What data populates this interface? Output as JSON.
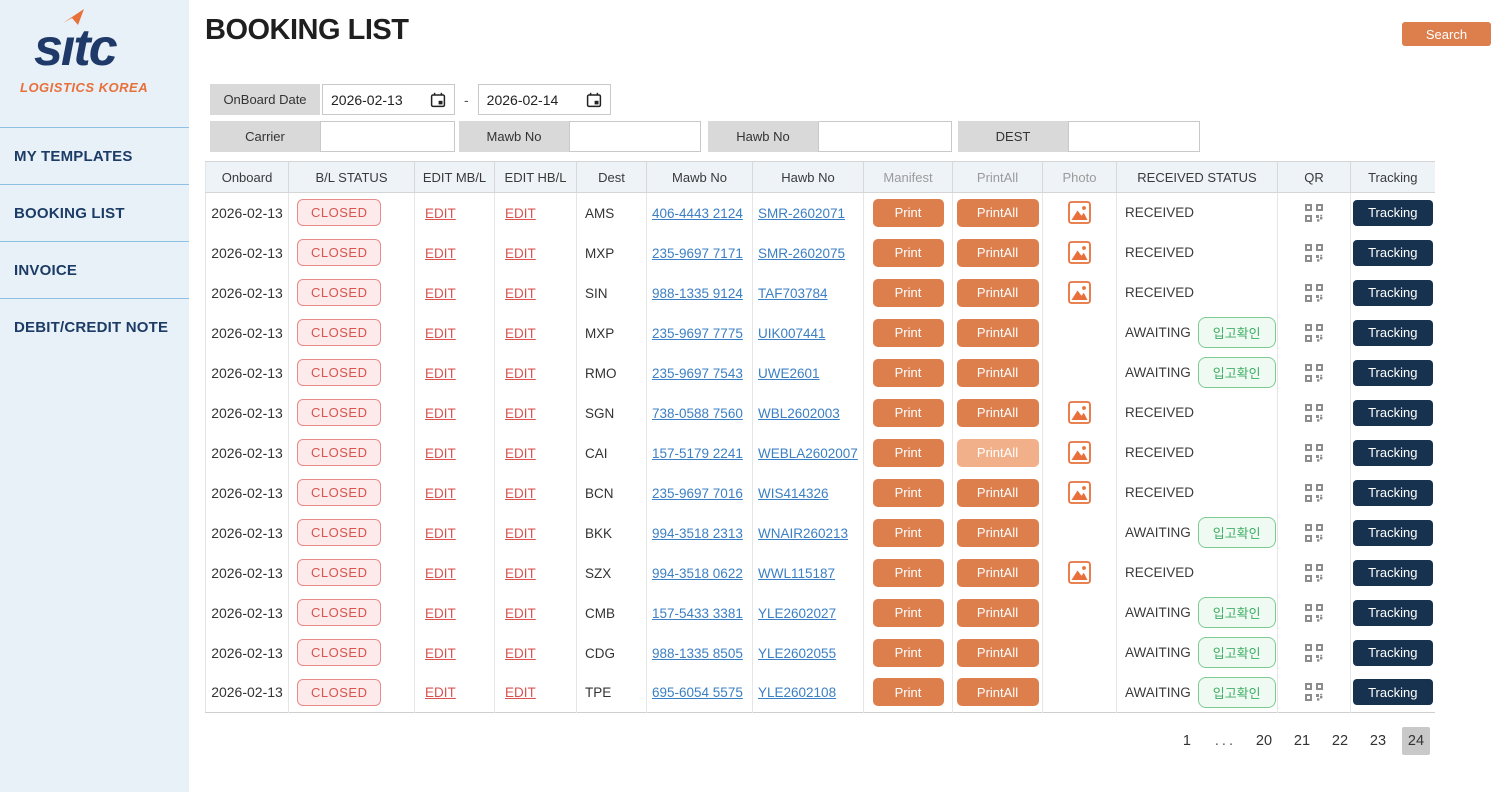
{
  "sidebar": {
    "logo": {
      "part1": "s",
      "part2": "ı",
      "part3": "tc",
      "subtext": "LOGISTICS KOREA"
    },
    "items": [
      {
        "label": "MY TEMPLATES"
      },
      {
        "label": "BOOKING LIST"
      },
      {
        "label": "INVOICE"
      },
      {
        "label": "DEBIT/CREDIT NOTE"
      }
    ]
  },
  "header": {
    "title": "BOOKING LIST",
    "search_label": "Search"
  },
  "filters": {
    "onboard_date": {
      "label": "OnBoard Date",
      "from": "2026-02-13",
      "to": "2026-02-14",
      "separator": "-"
    },
    "carrier": {
      "label": "Carrier",
      "value": ""
    },
    "mawb": {
      "label": "Mawb No",
      "value": ""
    },
    "hawb": {
      "label": "Hawb No",
      "value": ""
    },
    "dest": {
      "label": "DEST",
      "value": ""
    }
  },
  "table": {
    "columns": [
      {
        "label": "Onboard",
        "muted": false
      },
      {
        "label": "B/L STATUS",
        "muted": false
      },
      {
        "label": "EDIT MB/L",
        "muted": false
      },
      {
        "label": "EDIT HB/L",
        "muted": false
      },
      {
        "label": "Dest",
        "muted": false
      },
      {
        "label": "Mawb No",
        "muted": false
      },
      {
        "label": "Hawb No",
        "muted": false
      },
      {
        "label": "Manifest",
        "muted": true
      },
      {
        "label": "PrintAll",
        "muted": true
      },
      {
        "label": "Photo",
        "muted": true
      },
      {
        "label": "RECEIVED STATUS",
        "muted": false
      },
      {
        "label": "QR",
        "muted": false
      },
      {
        "label": "Tracking",
        "muted": false
      }
    ],
    "labels": {
      "closed": "CLOSED",
      "edit": "EDIT",
      "print": "Print",
      "print_all": "PrintAll",
      "tracking": "Tracking",
      "receive_confirm": "입고확인"
    },
    "rows": [
      {
        "onboard": "2026-02-13",
        "dest": "AMS",
        "mawb": "406-4443 2124",
        "hawb": "SMR-2602071",
        "status": "RECEIVED",
        "photo": true,
        "printall_disabled": false
      },
      {
        "onboard": "2026-02-13",
        "dest": "MXP",
        "mawb": "235-9697 7171",
        "hawb": "SMR-2602075",
        "status": "RECEIVED",
        "photo": true,
        "printall_disabled": false
      },
      {
        "onboard": "2026-02-13",
        "dest": "SIN",
        "mawb": "988-1335 9124",
        "hawb": "TAF703784",
        "status": "RECEIVED",
        "photo": true,
        "printall_disabled": false
      },
      {
        "onboard": "2026-02-13",
        "dest": "MXP",
        "mawb": "235-9697 7775",
        "hawb": "UIK007441",
        "status": "AWAITING",
        "photo": false,
        "printall_disabled": false
      },
      {
        "onboard": "2026-02-13",
        "dest": "RMO",
        "mawb": "235-9697 7543",
        "hawb": "UWE2601",
        "status": "AWAITING",
        "photo": false,
        "printall_disabled": false
      },
      {
        "onboard": "2026-02-13",
        "dest": "SGN",
        "mawb": "738-0588 7560",
        "hawb": "WBL2602003",
        "status": "RECEIVED",
        "photo": true,
        "printall_disabled": false
      },
      {
        "onboard": "2026-02-13",
        "dest": "CAI",
        "mawb": "157-5179 2241",
        "hawb": "WEBLA2602007",
        "status": "RECEIVED",
        "photo": true,
        "printall_disabled": true
      },
      {
        "onboard": "2026-02-13",
        "dest": "BCN",
        "mawb": "235-9697 7016",
        "hawb": "WIS414326",
        "status": "RECEIVED",
        "photo": true,
        "printall_disabled": false
      },
      {
        "onboard": "2026-02-13",
        "dest": "BKK",
        "mawb": "994-3518 2313",
        "hawb": "WNAIR260213",
        "status": "AWAITING",
        "photo": false,
        "printall_disabled": false
      },
      {
        "onboard": "2026-02-13",
        "dest": "SZX",
        "mawb": "994-3518 0622",
        "hawb": "WWL115187",
        "status": "RECEIVED",
        "photo": true,
        "printall_disabled": false
      },
      {
        "onboard": "2026-02-13",
        "dest": "CMB",
        "mawb": "157-5433 3381",
        "hawb": "YLE2602027",
        "status": "AWAITING",
        "photo": false,
        "printall_disabled": false
      },
      {
        "onboard": "2026-02-13",
        "dest": "CDG",
        "mawb": "988-1335 8505",
        "hawb": "YLE2602055",
        "status": "AWAITING",
        "photo": false,
        "printall_disabled": false
      },
      {
        "onboard": "2026-02-13",
        "dest": "TPE",
        "mawb": "695-6054 5575",
        "hawb": "YLE2602108",
        "status": "AWAITING",
        "photo": false,
        "printall_disabled": false
      }
    ]
  },
  "pagination": {
    "pages": [
      "1",
      "...",
      "20",
      "21",
      "22",
      "23",
      "24"
    ],
    "active": "24"
  },
  "colors": {
    "accent_orange": "#dd7e4d",
    "navy": "#16324f",
    "link_blue": "#3b7fc4",
    "status_red": "#d9534f",
    "status_green": "#3fae66",
    "active_page_bg": "#c9c9c9"
  }
}
